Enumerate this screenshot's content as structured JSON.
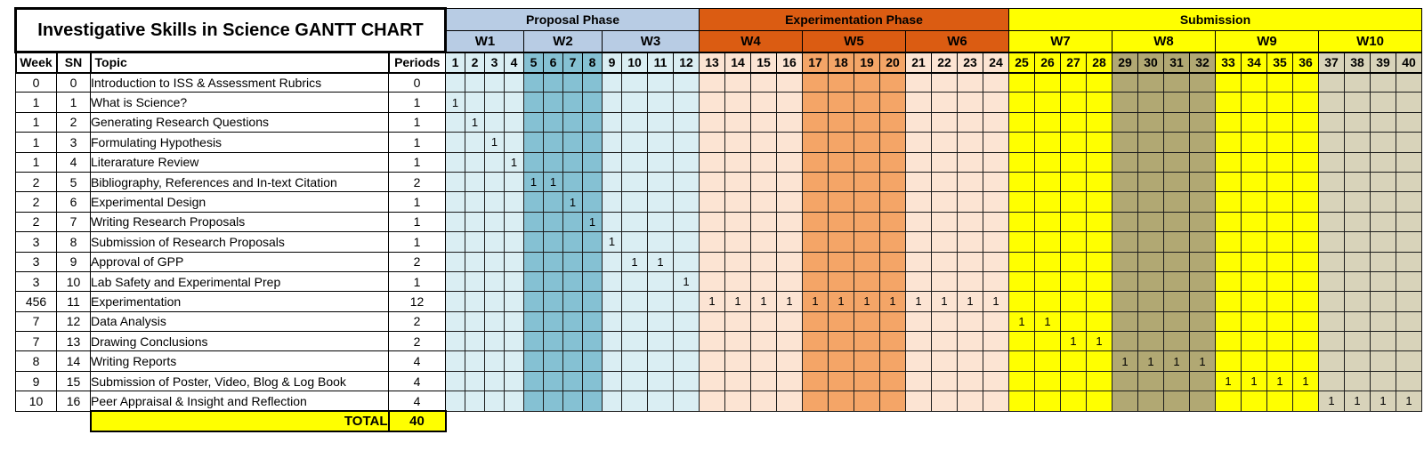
{
  "title": "Investigative Skills in Science GANTT CHART",
  "table_headers": {
    "week": "Week",
    "sn": "SN",
    "topic": "Topic",
    "periods": "Periods"
  },
  "total_row": {
    "label": "TOTAL",
    "value": "40"
  },
  "mark_symbol": "1",
  "colors": {
    "proposal_header": "#b8cce4",
    "experimentation_header": "#db5c12",
    "submission_header": "#ffff00",
    "grid_border": "#000000",
    "title_bg": "#ffffff"
  },
  "chart_data": {
    "type": "table",
    "subtype": "gantt",
    "title": "Investigative Skills in Science GANTT CHART",
    "columns": [
      "Week",
      "SN",
      "Topic",
      "Periods"
    ],
    "period_range": [
      1,
      40
    ],
    "total_periods": 40,
    "legend_position": "none",
    "grid": true,
    "phases": [
      {
        "name": "Proposal Phase",
        "period_start": 1,
        "period_end": 12,
        "week_labels": [
          "W1",
          "W2",
          "W3"
        ],
        "header_color": "#b8cce4"
      },
      {
        "name": "Experimentation Phase",
        "period_start": 13,
        "period_end": 24,
        "week_labels": [
          "W4",
          "W5",
          "W6"
        ],
        "header_color": "#db5c12"
      },
      {
        "name": "Submission",
        "period_start": 25,
        "period_end": 40,
        "week_labels": [
          "W7",
          "W8",
          "W9",
          "W10"
        ],
        "header_color": "#ffff00"
      }
    ],
    "week_bands": [
      {
        "label": "W1",
        "period_start": 1,
        "period_end": 4,
        "header_color": "#b8cce4",
        "band_color": "#daeef3"
      },
      {
        "label": "W2",
        "period_start": 5,
        "period_end": 8,
        "header_color": "#b8cce4",
        "band_color": "#85c1d3"
      },
      {
        "label": "W3",
        "period_start": 9,
        "period_end": 12,
        "header_color": "#b8cce4",
        "band_color": "#daeef3"
      },
      {
        "label": "W4",
        "period_start": 13,
        "period_end": 16,
        "header_color": "#db5c12",
        "band_color": "#fce4d3"
      },
      {
        "label": "W5",
        "period_start": 17,
        "period_end": 20,
        "header_color": "#db5c12",
        "band_color": "#f4a567"
      },
      {
        "label": "W6",
        "period_start": 21,
        "period_end": 24,
        "header_color": "#db5c12",
        "band_color": "#fce4d3"
      },
      {
        "label": "W7",
        "period_start": 25,
        "period_end": 28,
        "header_color": "#ffff00",
        "band_color": "#ffff00"
      },
      {
        "label": "W8",
        "period_start": 29,
        "period_end": 32,
        "header_color": "#ffff00",
        "band_color": "#b1a873"
      },
      {
        "label": "W9",
        "period_start": 33,
        "period_end": 36,
        "header_color": "#ffff00",
        "band_color": "#ffff00"
      },
      {
        "label": "W10",
        "period_start": 37,
        "period_end": 40,
        "header_color": "#ffff00",
        "band_color": "#d8d3ba"
      }
    ],
    "tasks": [
      {
        "week": "0",
        "sn": "0",
        "topic": "Introduction to ISS & Assessment Rubrics",
        "periods": "0",
        "start": null,
        "end": null
      },
      {
        "week": "1",
        "sn": "1",
        "topic": "What is Science?",
        "periods": "1",
        "start": 1,
        "end": 1
      },
      {
        "week": "1",
        "sn": "2",
        "topic": "Generating Research Questions",
        "periods": "1",
        "start": 2,
        "end": 2
      },
      {
        "week": "1",
        "sn": "3",
        "topic": "Formulating Hypothesis",
        "periods": "1",
        "start": 3,
        "end": 3
      },
      {
        "week": "1",
        "sn": "4",
        "topic": "Literarature Review",
        "periods": "1",
        "start": 4,
        "end": 4
      },
      {
        "week": "2",
        "sn": "5",
        "topic": "Bibliography, References and In-text Citation",
        "periods": "2",
        "start": 5,
        "end": 6
      },
      {
        "week": "2",
        "sn": "6",
        "topic": "Experimental Design",
        "periods": "1",
        "start": 7,
        "end": 7
      },
      {
        "week": "2",
        "sn": "7",
        "topic": "Writing Research Proposals",
        "periods": "1",
        "start": 8,
        "end": 8
      },
      {
        "week": "3",
        "sn": "8",
        "topic": "Submission of Research Proposals",
        "periods": "1",
        "start": 9,
        "end": 9
      },
      {
        "week": "3",
        "sn": "9",
        "topic": "Approval of GPP",
        "periods": "2",
        "start": 10,
        "end": 11
      },
      {
        "week": "3",
        "sn": "10",
        "topic": "Lab Safety and Experimental Prep",
        "periods": "1",
        "start": 12,
        "end": 12
      },
      {
        "week": "456",
        "sn": "11",
        "topic": "Experimentation",
        "periods": "12",
        "start": 13,
        "end": 24
      },
      {
        "week": "7",
        "sn": "12",
        "topic": "Data Analysis",
        "periods": "2",
        "start": 25,
        "end": 26
      },
      {
        "week": "7",
        "sn": "13",
        "topic": "Drawing Conclusions",
        "periods": "2",
        "start": 27,
        "end": 28
      },
      {
        "week": "8",
        "sn": "14",
        "topic": "Writing Reports",
        "periods": "4",
        "start": 29,
        "end": 32
      },
      {
        "week": "9",
        "sn": "15",
        "topic": "Submission of Poster, Video, Blog & Log Book",
        "periods": "4",
        "start": 33,
        "end": 36
      },
      {
        "week": "10",
        "sn": "16",
        "topic": "Peer Appraisal & Insight and Reflection",
        "periods": "4",
        "start": 37,
        "end": 40
      }
    ]
  }
}
